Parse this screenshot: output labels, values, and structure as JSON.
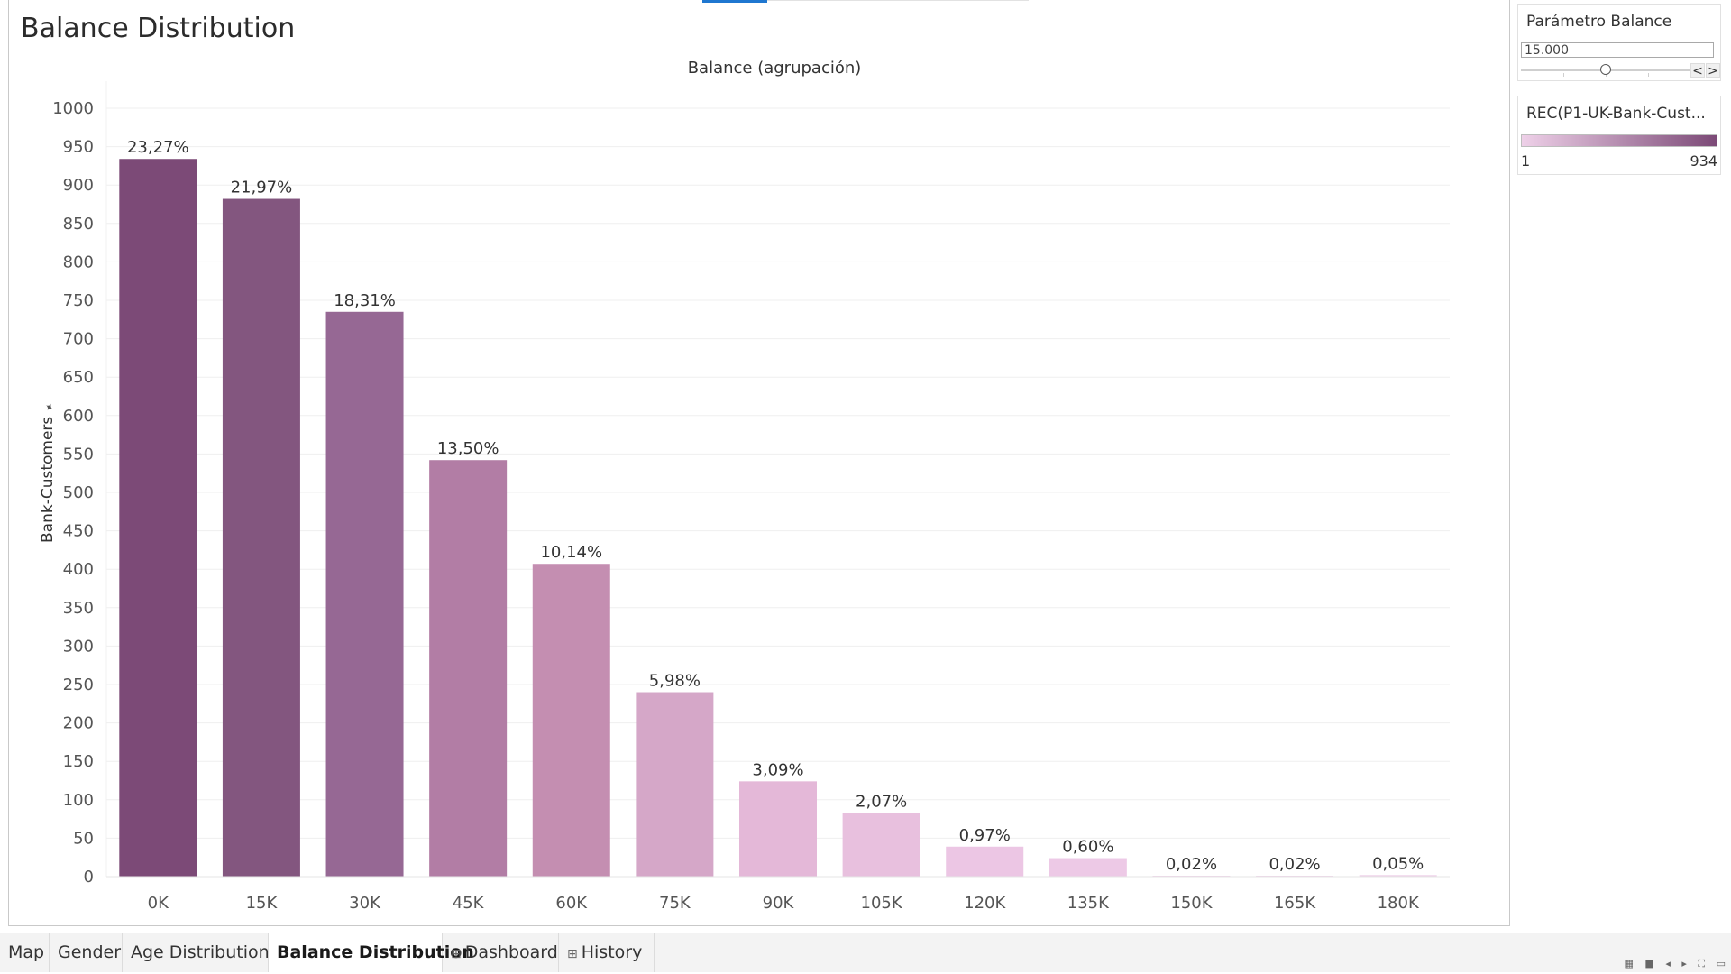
{
  "sheet_title": "Balance Distribution",
  "parameter": {
    "title": "Parámetro Balance",
    "value": "15.000",
    "slider_fraction": 0.5,
    "prev": "<",
    "next": ">"
  },
  "color_legend": {
    "title": "REC(P1-UK-Bank-Cust...",
    "min_label": "1",
    "max_label": "934",
    "color_min": "#eed0e8",
    "color_max": "#7c4a77"
  },
  "chart_data": {
    "type": "bar",
    "title": "Balance (agrupación)",
    "xlabel": "",
    "ylabel": "Bank-Customers",
    "ylabel_icon": "pin-icon",
    "categories": [
      "0K",
      "15K",
      "30K",
      "45K",
      "60K",
      "75K",
      "90K",
      "105K",
      "120K",
      "135K",
      "150K",
      "165K",
      "180K"
    ],
    "values": [
      934,
      882,
      735,
      542,
      407,
      240,
      124,
      83,
      39,
      24,
      1,
      1,
      2
    ],
    "labels": [
      "23,27%",
      "21,97%",
      "18,31%",
      "13,50%",
      "10,14%",
      "5,98%",
      "3,09%",
      "2,07%",
      "0,97%",
      "0,60%",
      "0,02%",
      "0,02%",
      "0,05%"
    ],
    "colors": [
      "#7c4a77",
      "#83567f",
      "#966894",
      "#b27da5",
      "#c48eb1",
      "#d5a7c8",
      "#e4b8d8",
      "#e8c0de",
      "#ecc6e4",
      "#edc9e6",
      "#eed0e8",
      "#eed0e8",
      "#eed0e8"
    ],
    "yticks": [
      0,
      50,
      100,
      150,
      200,
      250,
      300,
      350,
      400,
      450,
      500,
      550,
      600,
      650,
      700,
      750,
      800,
      850,
      900,
      950,
      1000
    ],
    "ylim": [
      0,
      1000
    ],
    "grid": true,
    "legend": "right"
  },
  "tabs": [
    {
      "label": "Map",
      "icon": ""
    },
    {
      "label": "Gender",
      "icon": ""
    },
    {
      "label": "Age Distribution",
      "icon": ""
    },
    {
      "label": "Balance Distribution",
      "icon": "",
      "active": true
    },
    {
      "label": "Dashboard",
      "icon": "⊞"
    },
    {
      "label": "History",
      "icon": "⊞"
    }
  ],
  "nav_icons": [
    "grid-view-icon",
    "single-view-icon",
    "prev-sheet-icon",
    "next-sheet-icon",
    "fullscreen-icon",
    "present-icon"
  ]
}
